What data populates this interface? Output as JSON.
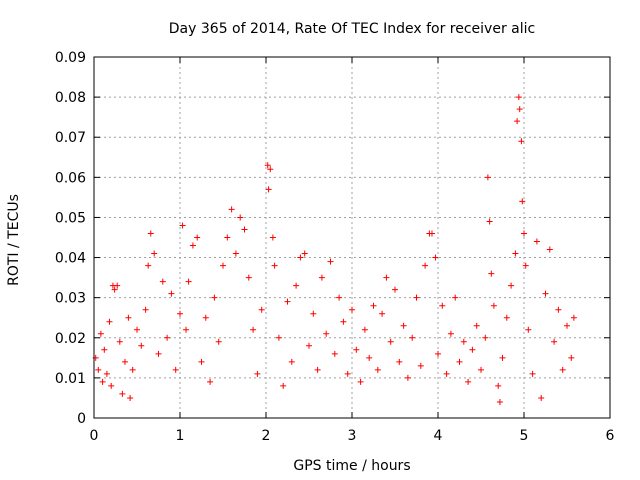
{
  "chart_data": {
    "type": "scatter",
    "title": "Day 365 of 2014, Rate Of TEC Index for receiver alic",
    "xlabel": "GPS time / hours",
    "ylabel": "ROTI / TECUs",
    "xlim": [
      0,
      6
    ],
    "ylim": [
      0,
      0.09
    ],
    "xticks": [
      0,
      1,
      2,
      3,
      4,
      5,
      6
    ],
    "xtick_labels": [
      "0",
      "1",
      "2",
      "3",
      "4",
      "5",
      "6"
    ],
    "yticks": [
      0,
      0.01,
      0.02,
      0.03,
      0.04,
      0.05,
      0.06,
      0.07,
      0.08,
      0.09
    ],
    "ytick_labels": [
      "0",
      "0.01",
      "0.02",
      "0.03",
      "0.04",
      "0.05",
      "0.06",
      "0.07",
      "0.08",
      "0.09"
    ],
    "grid": true,
    "marker": "+",
    "color": "#ff0000",
    "series": [
      {
        "name": "ROTI",
        "points": [
          [
            0.02,
            0.015
          ],
          [
            0.05,
            0.012
          ],
          [
            0.08,
            0.021
          ],
          [
            0.1,
            0.009
          ],
          [
            0.12,
            0.017
          ],
          [
            0.15,
            0.011
          ],
          [
            0.18,
            0.024
          ],
          [
            0.2,
            0.008
          ],
          [
            0.22,
            0.033
          ],
          [
            0.24,
            0.032
          ],
          [
            0.27,
            0.033
          ],
          [
            0.3,
            0.019
          ],
          [
            0.33,
            0.006
          ],
          [
            0.36,
            0.014
          ],
          [
            0.4,
            0.025
          ],
          [
            0.42,
            0.005
          ],
          [
            0.45,
            0.012
          ],
          [
            0.5,
            0.022
          ],
          [
            0.55,
            0.018
          ],
          [
            0.6,
            0.027
          ],
          [
            0.63,
            0.038
          ],
          [
            0.66,
            0.046
          ],
          [
            0.7,
            0.041
          ],
          [
            0.75,
            0.016
          ],
          [
            0.8,
            0.034
          ],
          [
            0.85,
            0.02
          ],
          [
            0.9,
            0.031
          ],
          [
            0.95,
            0.012
          ],
          [
            1.0,
            0.026
          ],
          [
            1.03,
            0.048
          ],
          [
            1.07,
            0.022
          ],
          [
            1.1,
            0.034
          ],
          [
            1.15,
            0.043
          ],
          [
            1.2,
            0.045
          ],
          [
            1.25,
            0.014
          ],
          [
            1.3,
            0.025
          ],
          [
            1.35,
            0.009
          ],
          [
            1.4,
            0.03
          ],
          [
            1.45,
            0.019
          ],
          [
            1.5,
            0.038
          ],
          [
            1.55,
            0.045
          ],
          [
            1.6,
            0.052
          ],
          [
            1.65,
            0.041
          ],
          [
            1.7,
            0.05
          ],
          [
            1.75,
            0.047
          ],
          [
            1.8,
            0.035
          ],
          [
            1.85,
            0.022
          ],
          [
            1.9,
            0.011
          ],
          [
            1.95,
            0.027
          ],
          [
            2.02,
            0.063
          ],
          [
            2.03,
            0.057
          ],
          [
            2.05,
            0.062
          ],
          [
            2.08,
            0.045
          ],
          [
            2.1,
            0.038
          ],
          [
            2.15,
            0.02
          ],
          [
            2.2,
            0.008
          ],
          [
            2.25,
            0.029
          ],
          [
            2.3,
            0.014
          ],
          [
            2.35,
            0.033
          ],
          [
            2.4,
            0.04
          ],
          [
            2.45,
            0.041
          ],
          [
            2.5,
            0.018
          ],
          [
            2.55,
            0.026
          ],
          [
            2.6,
            0.012
          ],
          [
            2.65,
            0.035
          ],
          [
            2.7,
            0.021
          ],
          [
            2.75,
            0.039
          ],
          [
            2.8,
            0.016
          ],
          [
            2.85,
            0.03
          ],
          [
            2.9,
            0.024
          ],
          [
            2.95,
            0.011
          ],
          [
            3.0,
            0.027
          ],
          [
            3.05,
            0.017
          ],
          [
            3.1,
            0.009
          ],
          [
            3.15,
            0.022
          ],
          [
            3.2,
            0.015
          ],
          [
            3.25,
            0.028
          ],
          [
            3.3,
            0.012
          ],
          [
            3.35,
            0.026
          ],
          [
            3.4,
            0.035
          ],
          [
            3.45,
            0.019
          ],
          [
            3.5,
            0.032
          ],
          [
            3.55,
            0.014
          ],
          [
            3.6,
            0.023
          ],
          [
            3.65,
            0.01
          ],
          [
            3.7,
            0.02
          ],
          [
            3.75,
            0.03
          ],
          [
            3.8,
            0.013
          ],
          [
            3.85,
            0.038
          ],
          [
            3.9,
            0.046
          ],
          [
            3.93,
            0.046
          ],
          [
            3.97,
            0.04
          ],
          [
            4.0,
            0.016
          ],
          [
            4.05,
            0.028
          ],
          [
            4.1,
            0.011
          ],
          [
            4.15,
            0.021
          ],
          [
            4.2,
            0.03
          ],
          [
            4.25,
            0.014
          ],
          [
            4.3,
            0.019
          ],
          [
            4.35,
            0.009
          ],
          [
            4.4,
            0.017
          ],
          [
            4.45,
            0.023
          ],
          [
            4.5,
            0.012
          ],
          [
            4.55,
            0.02
          ],
          [
            4.58,
            0.06
          ],
          [
            4.6,
            0.049
          ],
          [
            4.62,
            0.036
          ],
          [
            4.65,
            0.028
          ],
          [
            4.7,
            0.008
          ],
          [
            4.72,
            0.004
          ],
          [
            4.75,
            0.015
          ],
          [
            4.8,
            0.025
          ],
          [
            4.85,
            0.033
          ],
          [
            4.9,
            0.041
          ],
          [
            4.92,
            0.074
          ],
          [
            4.94,
            0.08
          ],
          [
            4.95,
            0.077
          ],
          [
            4.97,
            0.069
          ],
          [
            4.98,
            0.054
          ],
          [
            5.0,
            0.046
          ],
          [
            5.02,
            0.038
          ],
          [
            5.05,
            0.022
          ],
          [
            5.1,
            0.011
          ],
          [
            5.15,
            0.044
          ],
          [
            5.2,
            0.005
          ],
          [
            5.25,
            0.031
          ],
          [
            5.3,
            0.042
          ],
          [
            5.35,
            0.019
          ],
          [
            5.4,
            0.027
          ],
          [
            5.45,
            0.012
          ],
          [
            5.5,
            0.023
          ],
          [
            5.55,
            0.015
          ],
          [
            5.58,
            0.025
          ]
        ]
      }
    ]
  }
}
